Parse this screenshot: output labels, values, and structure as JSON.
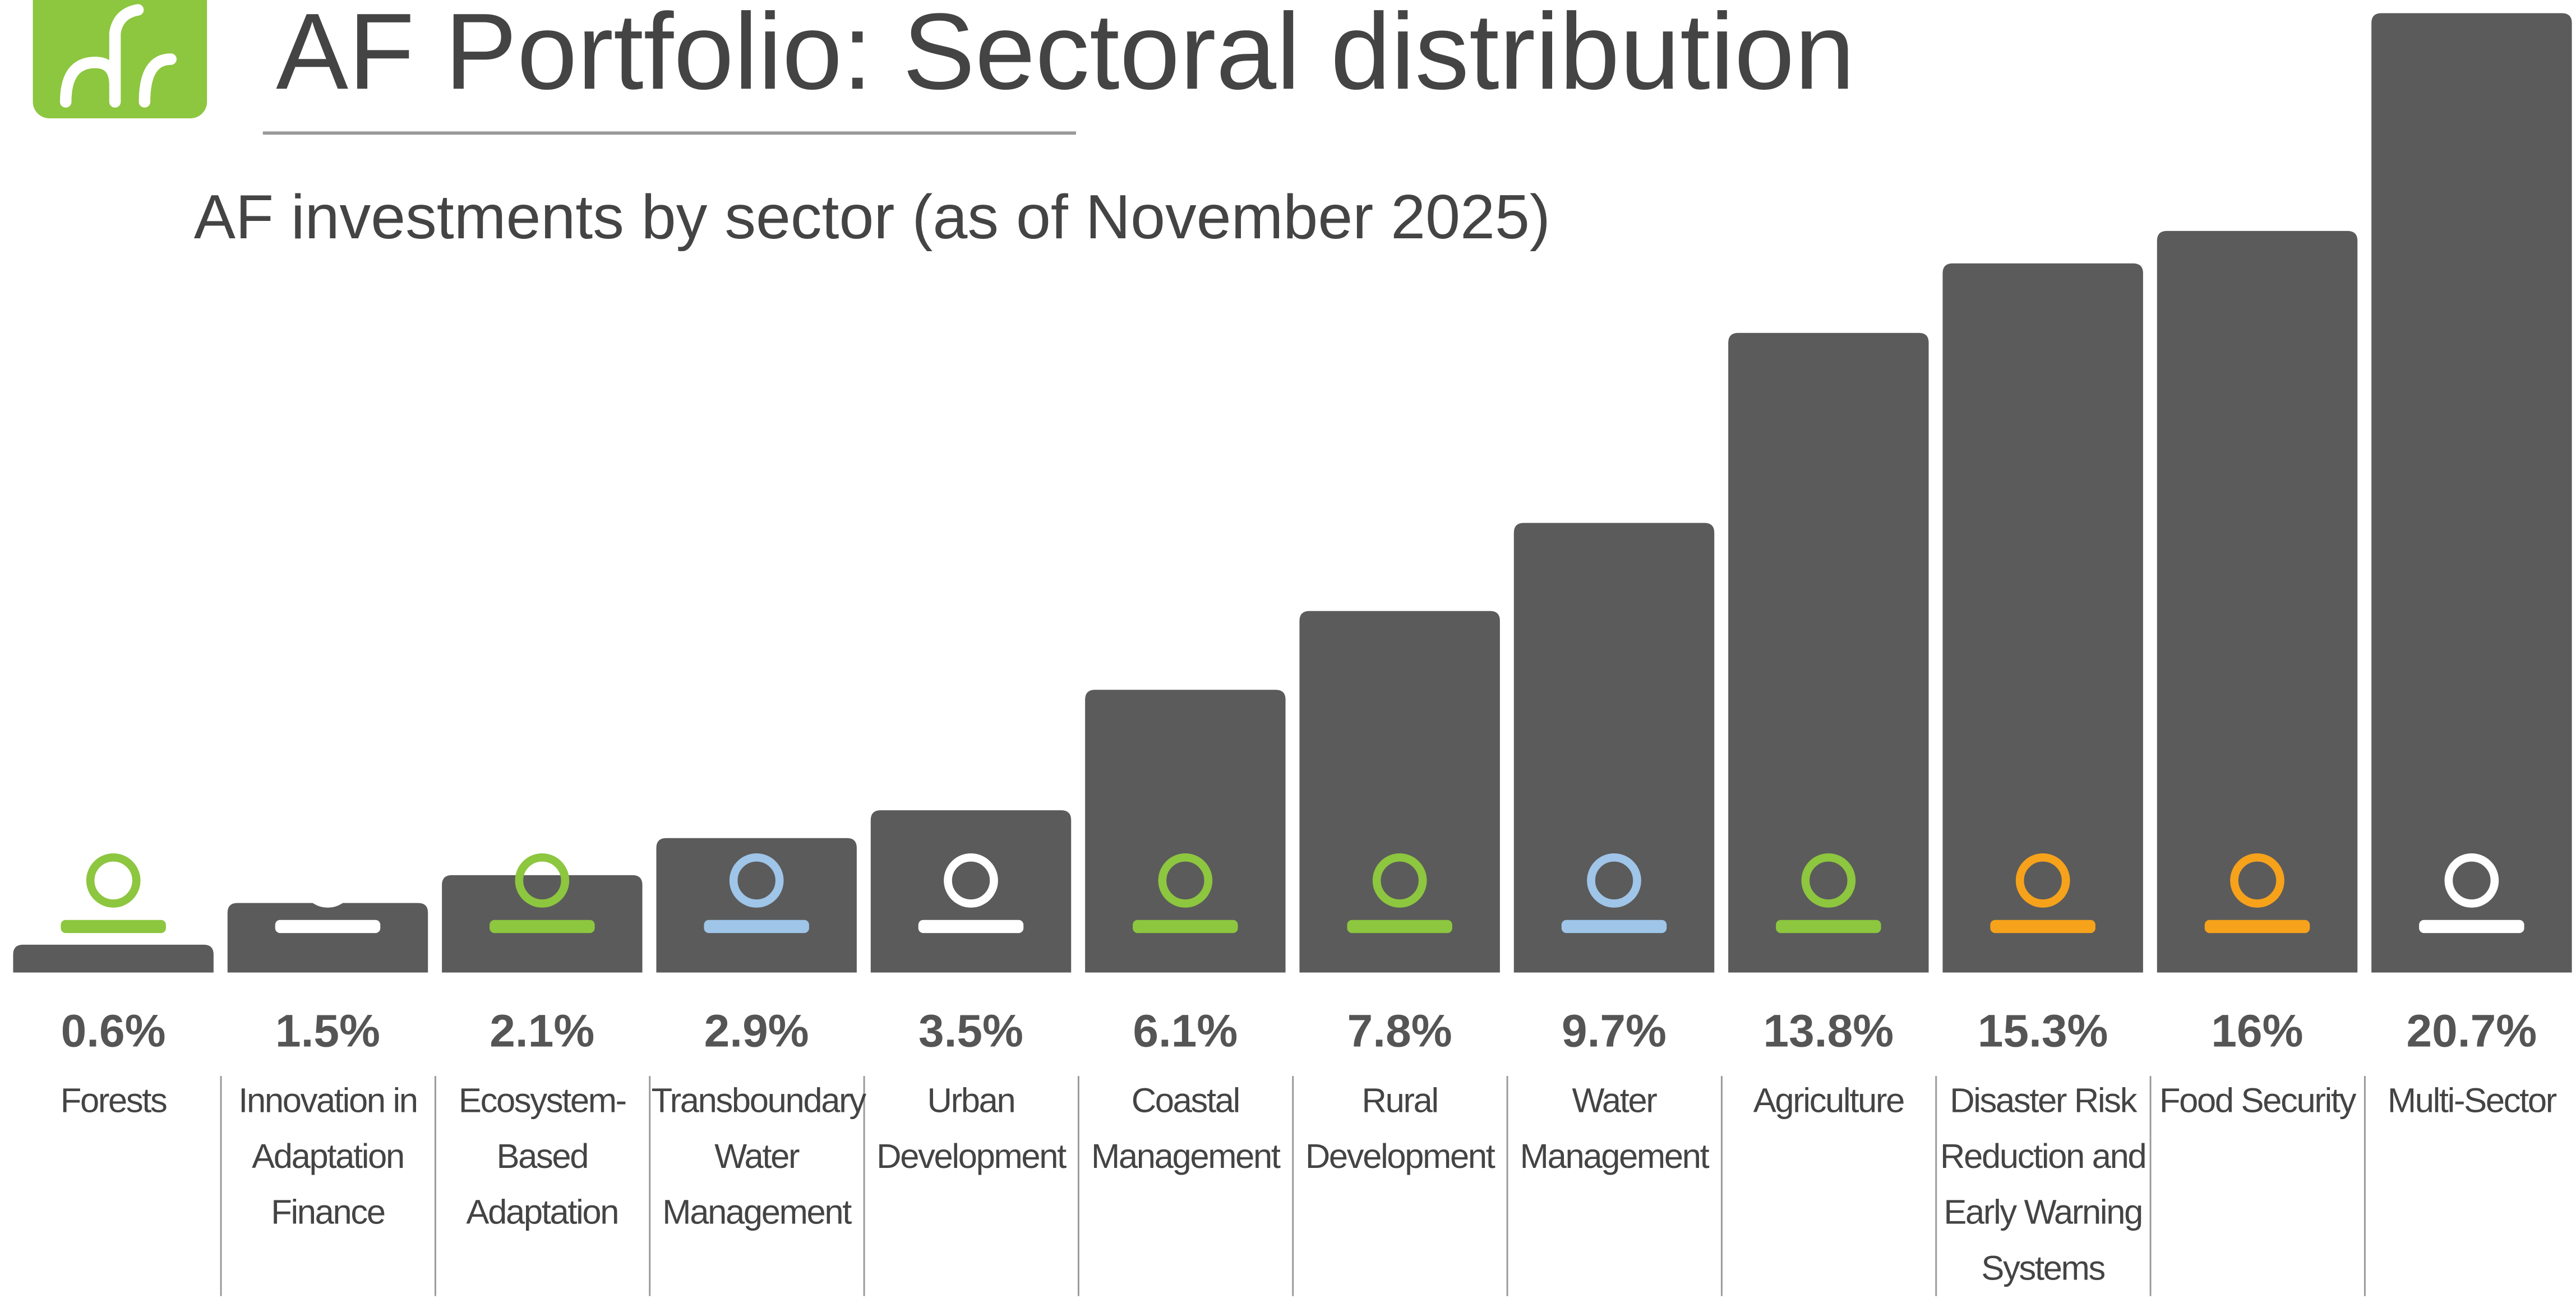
{
  "chart_data": {
    "type": "bar",
    "title": "AF Portfolio: Sectoral distribution",
    "subtitle": "AF investments by sector (as of November 2025)",
    "categories": [
      "Forests",
      "Innovation in Adaptation Finance",
      "Ecosystem-Based Adaptation",
      "Transboundary Water Management",
      "Urban Development",
      "Coastal Management",
      "Rural Development",
      "Water Management",
      "Agriculture",
      "Disaster Risk Reduction and Early Warning Systems",
      "Food Security",
      "Multi-Sector"
    ],
    "values": [
      0.6,
      1.5,
      2.1,
      2.9,
      3.5,
      6.1,
      7.8,
      9.7,
      13.8,
      15.3,
      16,
      20.7
    ],
    "value_labels": [
      "0.6%",
      "1.5%",
      "2.1%",
      "2.9%",
      "3.5%",
      "6.1%",
      "7.8%",
      "9.7%",
      "13.8%",
      "15.3%",
      "16%",
      "20.7%"
    ],
    "color": "#5b5b5b"
  }
}
